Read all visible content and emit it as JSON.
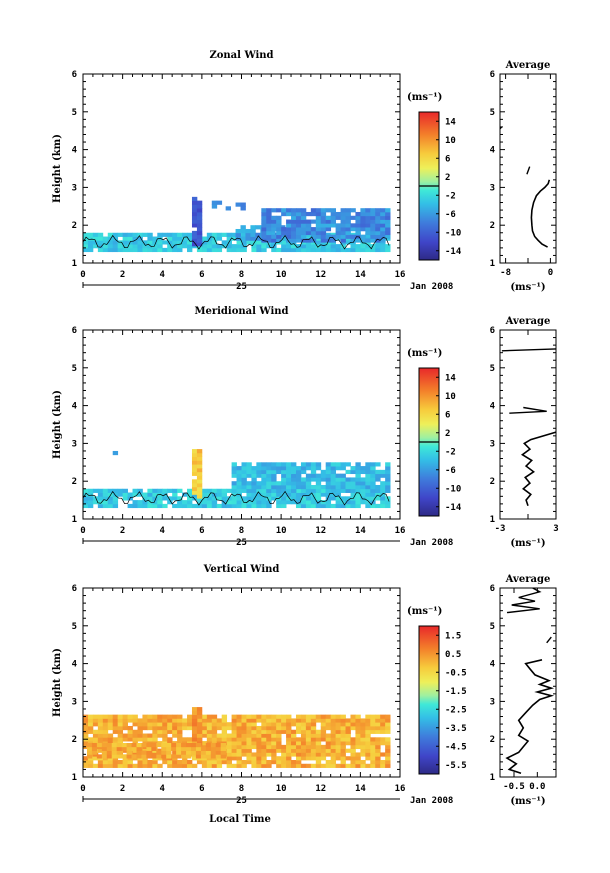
{
  "figure": {
    "date_label": "Jan 2008",
    "day_label": "25",
    "x_axis_label": "Local Time",
    "y_axis_label": "Height (km)",
    "unit_label": "(ms⁻¹)",
    "average_title": "Average"
  },
  "chart_data": [
    {
      "type": "heatmap",
      "title": "Zonal Wind",
      "ylabel": "Height (km)",
      "xlim": [
        0,
        16
      ],
      "ylim": [
        1,
        6
      ],
      "x_ticks": [
        0,
        2,
        4,
        6,
        8,
        10,
        12,
        14,
        16
      ],
      "y_ticks": [
        1,
        2,
        3,
        4,
        5,
        6
      ],
      "colorbar": {
        "unit": "(ms⁻¹)",
        "ticks": [
          14,
          10,
          6,
          2,
          -2,
          -6,
          -10,
          -14
        ],
        "range": [
          -16,
          16
        ],
        "marker": 0
      },
      "regions": [
        {
          "x0": 0.0,
          "x1": 15.5,
          "y0": 1.3,
          "y1": 1.75,
          "value": -3,
          "spread": 2
        },
        {
          "x0": 5.5,
          "x1": 5.9,
          "y0": 1.45,
          "y1": 2.75,
          "value": -11,
          "spread": 1.5
        },
        {
          "x0": 7.7,
          "x1": 10.0,
          "y0": 1.6,
          "y1": 1.95,
          "value": -6,
          "spread": 2
        },
        {
          "x0": 9.0,
          "x1": 15.5,
          "y0": 1.55,
          "y1": 2.45,
          "value": -7,
          "spread": 2.5
        },
        {
          "x0": 7.2,
          "x1": 8.0,
          "y0": 2.4,
          "y1": 2.6,
          "value": -7,
          "spread": 1
        },
        {
          "x0": 6.5,
          "x1": 6.8,
          "y0": 2.45,
          "y1": 2.6,
          "value": -7,
          "spread": 1
        }
      ],
      "average": {
        "xlim": [
          -9,
          1
        ],
        "x_ticks": [
          -8,
          -4,
          0
        ],
        "x_tick_labels": [
          "-8",
          "",
          "0"
        ],
        "profile": [
          [
            -0.5,
            1.42
          ],
          [
            -1.5,
            1.5
          ],
          [
            -2.2,
            1.6
          ],
          [
            -2.8,
            1.7
          ],
          [
            -3.2,
            1.85
          ],
          [
            -3.3,
            2.0
          ],
          [
            -3.4,
            2.2
          ],
          [
            -3.3,
            2.4
          ],
          [
            -3.0,
            2.6
          ],
          [
            -2.5,
            2.78
          ],
          [
            -1.8,
            2.9
          ],
          [
            -1.0,
            3.0
          ],
          [
            -0.4,
            3.1
          ],
          [
            -0.2,
            3.2
          ]
        ],
        "segments": [
          [
            [
              -4.2,
              3.35
            ],
            [
              -3.7,
              3.55
            ]
          ],
          [
            [
              -9.0,
              4.55
            ],
            [
              -8.7,
              4.6
            ]
          ]
        ]
      }
    },
    {
      "type": "heatmap",
      "title": "Meridional Wind",
      "ylabel": "Height (km)",
      "xlim": [
        0,
        16
      ],
      "ylim": [
        1,
        6
      ],
      "x_ticks": [
        0,
        2,
        4,
        6,
        8,
        10,
        12,
        14,
        16
      ],
      "y_ticks": [
        1,
        2,
        3,
        4,
        5,
        6
      ],
      "colorbar": {
        "unit": "(ms⁻¹)",
        "ticks": [
          14,
          10,
          6,
          2,
          -2,
          -6,
          -10,
          -14
        ],
        "range": [
          -16,
          16
        ],
        "marker": 0
      },
      "regions": [
        {
          "x0": 0.0,
          "x1": 15.5,
          "y0": 1.3,
          "y1": 1.75,
          "value": -3,
          "spread": 2
        },
        {
          "x0": 5.5,
          "x1": 5.9,
          "y0": 1.55,
          "y1": 2.8,
          "value": 7,
          "spread": 2
        },
        {
          "x0": 7.5,
          "x1": 15.5,
          "y0": 1.7,
          "y1": 2.45,
          "value": -4,
          "spread": 2
        },
        {
          "x0": 1.5,
          "x1": 1.7,
          "y0": 2.7,
          "y1": 2.8,
          "value": -6,
          "spread": 0.5
        }
      ],
      "average": {
        "xlim": [
          -3,
          3
        ],
        "x_ticks": [
          -3,
          0,
          3
        ],
        "x_tick_labels": [
          "-3",
          "",
          "3"
        ],
        "profile": [
          [
            0.0,
            1.35
          ],
          [
            -0.2,
            1.5
          ],
          [
            0.3,
            1.65
          ],
          [
            -0.5,
            1.8
          ],
          [
            0.2,
            1.95
          ],
          [
            -0.3,
            2.1
          ],
          [
            0.6,
            2.25
          ],
          [
            -0.2,
            2.4
          ],
          [
            0.4,
            2.55
          ],
          [
            -0.6,
            2.7
          ],
          [
            0.2,
            2.85
          ],
          [
            -0.4,
            3.0
          ],
          [
            0.3,
            3.1
          ],
          [
            3.0,
            3.3
          ]
        ],
        "segments": [
          [
            [
              -2.0,
              3.8
            ],
            [
              2.0,
              3.85
            ],
            [
              -0.5,
              3.95
            ]
          ],
          [
            [
              -2.8,
              5.45
            ],
            [
              3.0,
              5.5
            ]
          ]
        ]
      }
    },
    {
      "type": "heatmap",
      "title": "Vertical Wind",
      "ylabel": "Height (km)",
      "xlabel": "Local Time",
      "xlim": [
        0,
        16
      ],
      "ylim": [
        1,
        6
      ],
      "x_ticks": [
        0,
        2,
        4,
        6,
        8,
        10,
        12,
        14,
        16
      ],
      "y_ticks": [
        1,
        2,
        3,
        4,
        5,
        6
      ],
      "colorbar": {
        "unit": "(ms⁻¹)",
        "ticks": [
          1.5,
          0.5,
          -0.5,
          -1.5,
          -2.5,
          -3.5,
          -4.5,
          -5.5
        ],
        "range": [
          -6,
          2
        ]
      },
      "regions": [
        {
          "x0": 0.0,
          "x1": 15.5,
          "y0": 1.25,
          "y1": 2.6,
          "value": 0.1,
          "spread": 0.6
        },
        {
          "x0": 5.5,
          "x1": 5.9,
          "y0": 1.55,
          "y1": 2.85,
          "value": 0.5,
          "spread": 0.4
        },
        {
          "x0": 0.2,
          "x1": 7.0,
          "y0": 1.5,
          "y1": 1.9,
          "value": 0.2,
          "spread": 0.5
        }
      ],
      "average": {
        "xlim": [
          -0.8,
          0.4
        ],
        "x_ticks": [
          -0.5,
          0.0
        ],
        "x_tick_labels": [
          "-0.5",
          "0.0"
        ],
        "profile": [
          [
            -0.35,
            1.1
          ],
          [
            -0.6,
            1.2
          ],
          [
            -0.45,
            1.35
          ],
          [
            -0.65,
            1.5
          ],
          [
            -0.4,
            1.65
          ],
          [
            -0.3,
            1.8
          ],
          [
            -0.2,
            1.95
          ],
          [
            -0.4,
            2.1
          ],
          [
            -0.3,
            2.3
          ],
          [
            -0.4,
            2.5
          ],
          [
            -0.25,
            2.7
          ],
          [
            -0.1,
            2.9
          ],
          [
            0.05,
            3.05
          ],
          [
            0.3,
            3.15
          ],
          [
            0.0,
            3.25
          ],
          [
            0.3,
            3.35
          ],
          [
            0.05,
            3.45
          ],
          [
            0.25,
            3.55
          ],
          [
            -0.05,
            3.7
          ],
          [
            -0.15,
            3.85
          ],
          [
            -0.25,
            4.0
          ],
          [
            0.1,
            4.1
          ]
        ],
        "segments": [
          [
            [
              -0.65,
              5.35
            ],
            [
              0.05,
              5.45
            ],
            [
              -0.55,
              5.55
            ],
            [
              -0.05,
              5.65
            ],
            [
              -0.4,
              5.75
            ],
            [
              0.05,
              5.9
            ],
            [
              -0.1,
              6.0
            ]
          ],
          [
            [
              0.2,
              4.55
            ],
            [
              0.3,
              4.7
            ]
          ]
        ]
      }
    }
  ]
}
